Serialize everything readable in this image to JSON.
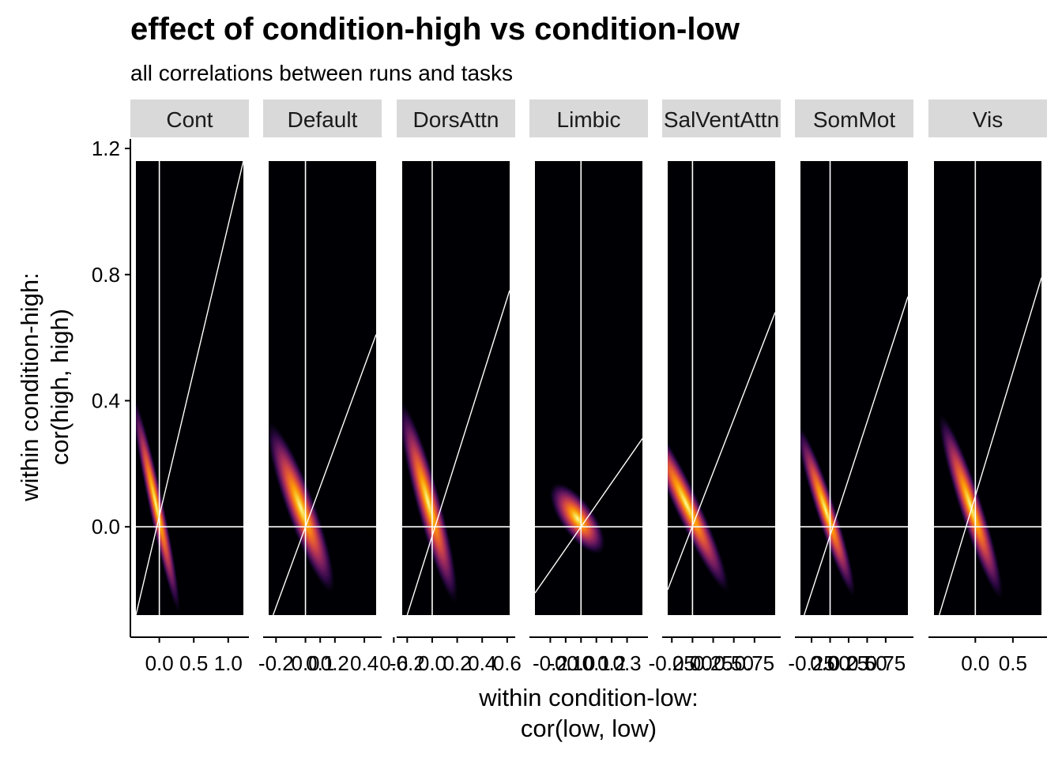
{
  "chart_data": {
    "type": "heatmap",
    "subtype": "faceted-2d-density",
    "title": "effect of condition-high vs condition-low",
    "subtitle": "all correlations between runs and tasks",
    "xlabel": [
      "within condition-low:",
      "cor(low, low)"
    ],
    "ylabel": [
      "within condition-high:",
      "cor(high, high)"
    ],
    "ylim": [
      -0.28,
      1.16
    ],
    "y_ticks": [
      0.0,
      0.4,
      0.8,
      1.2
    ],
    "y_tick_labels": [
      "0.0",
      "0.4",
      "0.8",
      "1.2"
    ],
    "background": "#000004",
    "density_palette": [
      "#1b0c41",
      "#4a0c6b",
      "#781c6d",
      "#a52c60",
      "#cf4446",
      "#ed6925",
      "#fb9b06",
      "#f7d13d",
      "#fcffa4"
    ],
    "reference_lines": [
      "x = 0",
      "y = 0",
      "fitted line"
    ],
    "grid": false,
    "legend": "none",
    "facets": [
      {
        "name": "Cont",
        "xlim": [
          -0.34,
          1.22
        ],
        "x_ticks": [
          0.0,
          0.5,
          1.0
        ],
        "x_tick_labels": [
          "0.0",
          "0.5",
          "1.0"
        ],
        "line": [
          [
            -0.34,
            -0.28
          ],
          [
            1.22,
            1.16
          ]
        ],
        "density_center": [
          0.0,
          0.02
        ],
        "density_spread": [
          0.05,
          0.16
        ],
        "density_rotation_deg": -12
      },
      {
        "name": "Default",
        "xlim": [
          -0.25,
          0.48
        ],
        "x_ticks": [
          -0.2,
          0.0,
          0.1,
          0.2,
          0.4,
          0.6
        ],
        "x_tick_labels": [
          "-0.2",
          "0.0",
          "0.1",
          "0.2",
          "0.4",
          "0.6"
        ],
        "line": [
          [
            -0.22,
            -0.28
          ],
          [
            0.48,
            0.61
          ]
        ],
        "density_center": [
          0.0,
          0.02
        ],
        "density_spread": [
          0.045,
          0.13
        ],
        "density_rotation_deg": -20
      },
      {
        "name": "DorsAttn",
        "xlim": [
          -0.24,
          0.62
        ],
        "x_ticks": [
          -0.2,
          0.0,
          0.2,
          0.4,
          0.6
        ],
        "x_tick_labels": [
          "-0.2",
          "0.0",
          "0.2",
          "0.4",
          "0.6"
        ],
        "line": [
          [
            -0.2,
            -0.28
          ],
          [
            0.62,
            0.75
          ]
        ],
        "density_center": [
          0.0,
          0.03
        ],
        "density_spread": [
          0.045,
          0.15
        ],
        "density_rotation_deg": -15
      },
      {
        "name": "Limbic",
        "xlim": [
          -0.3,
          0.4
        ],
        "x_ticks": [
          -0.2,
          -0.1,
          0.0,
          0.1,
          0.2,
          0.3
        ],
        "x_tick_labels": [
          "-0.2",
          "-0.1",
          "0.0",
          "0.1",
          "0.2",
          "0.3"
        ],
        "line": [
          [
            -0.3,
            -0.21
          ],
          [
            0.4,
            0.28
          ]
        ],
        "density_center": [
          0.0,
          0.01
        ],
        "density_spread": [
          0.05,
          0.06
        ],
        "density_rotation_deg": -35
      },
      {
        "name": "SalVentAttn",
        "xlim": [
          -0.3,
          1.0
        ],
        "x_ticks": [
          -0.25,
          0.0,
          0.25,
          0.5,
          0.75
        ],
        "x_tick_labels": [
          "-0.25",
          "0.00",
          "0.25",
          "0.50",
          "0.75"
        ],
        "line": [
          [
            -0.3,
            -0.2
          ],
          [
            1.0,
            0.68
          ]
        ],
        "density_center": [
          0.0,
          0.03
        ],
        "density_spread": [
          0.07,
          0.14
        ],
        "density_rotation_deg": -25
      },
      {
        "name": "SomMot",
        "xlim": [
          -0.4,
          1.05
        ],
        "x_ticks": [
          -0.25,
          0.0,
          0.25,
          0.5,
          0.75
        ],
        "x_tick_labels": [
          "-0.25",
          "0.00",
          "0.25",
          "0.50",
          "0.75"
        ],
        "line": [
          [
            -0.35,
            -0.28
          ],
          [
            1.05,
            0.73
          ]
        ],
        "density_center": [
          0.0,
          0.01
        ],
        "density_spread": [
          0.06,
          0.13
        ],
        "density_rotation_deg": -18
      },
      {
        "name": "Vis",
        "xlim": [
          -0.55,
          0.88
        ],
        "x_ticks": [
          0.0,
          0.5
        ],
        "x_tick_labels": [
          "0.0",
          "0.5"
        ],
        "line": [
          [
            -0.48,
            -0.28
          ],
          [
            0.88,
            0.79
          ]
        ],
        "density_center": [
          0.0,
          0.02
        ],
        "density_spread": [
          0.07,
          0.14
        ],
        "density_rotation_deg": -18
      }
    ]
  }
}
